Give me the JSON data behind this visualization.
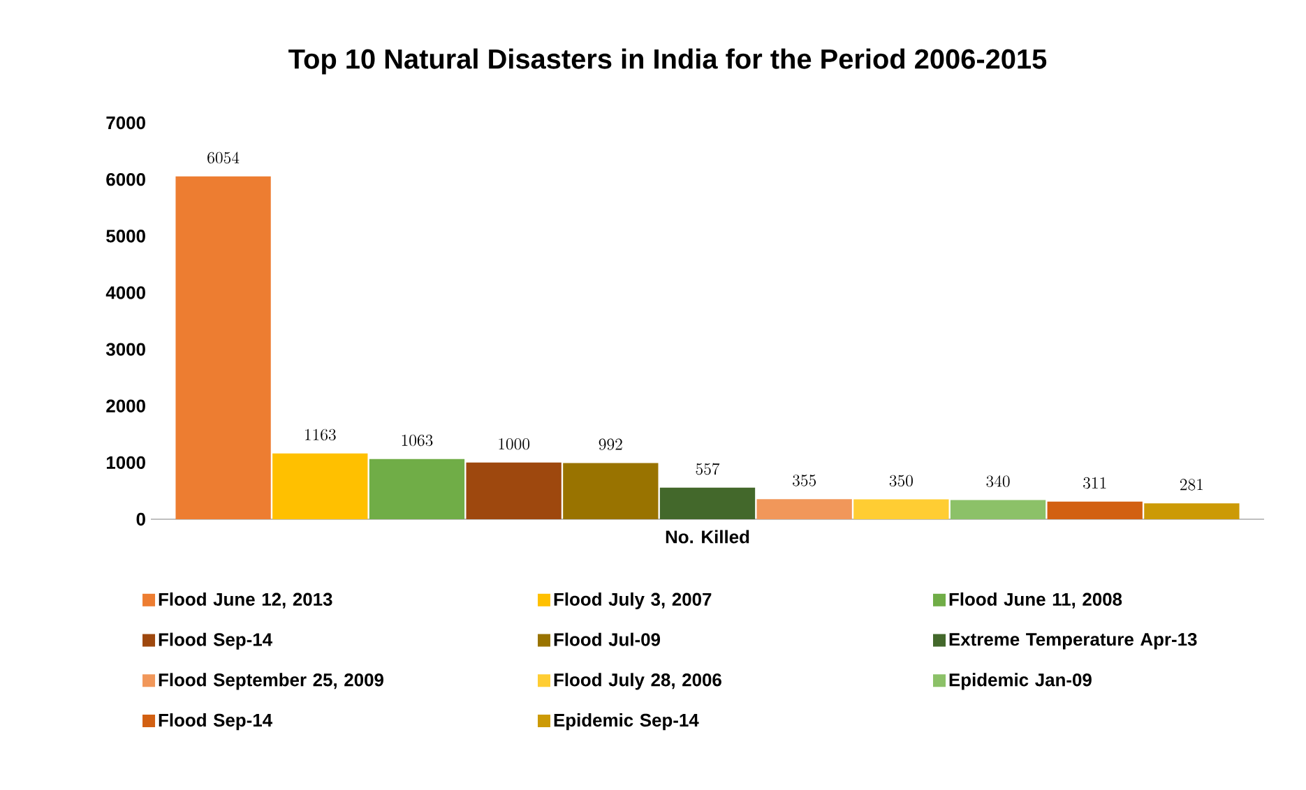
{
  "chart_data": {
    "type": "bar",
    "title": "Top 10 Natural Disasters in India for the Period 2006-2015",
    "categories": [
      "No. Killed"
    ],
    "series": [
      {
        "name": "Flood  June 12, 2013",
        "color": "#ed7d31",
        "values": [
          6054
        ]
      },
      {
        "name": "Flood  July 3, 2007",
        "color": "#ffc000",
        "values": [
          1163
        ]
      },
      {
        "name": "Flood  June 11, 2008",
        "color": "#70ad47",
        "values": [
          1063
        ]
      },
      {
        "name": "Flood  Sep-14",
        "color": "#9e480e",
        "values": [
          1000
        ]
      },
      {
        "name": "Flood  Jul-09",
        "color": "#997300",
        "values": [
          992
        ]
      },
      {
        "name": "Extreme Temperature  Apr-13",
        "color": "#43682b",
        "values": [
          557
        ]
      },
      {
        "name": "Flood  September 25, 2009",
        "color": "#f1975a",
        "values": [
          355
        ]
      },
      {
        "name": "Flood  July 28, 2006",
        "color": "#ffcd33",
        "values": [
          350
        ]
      },
      {
        "name": "Epidemic   Jan-09",
        "color": "#8cc168",
        "values": [
          340
        ]
      },
      {
        "name": "Flood   Sep-14",
        "color": "#d26012",
        "values": [
          311
        ]
      },
      {
        "name": "Epidemic   Sep-14",
        "color": "#cc9a06",
        "values": [
          281
        ]
      }
    ],
    "ylim": [
      0,
      7000
    ],
    "yticks": [
      0,
      1000,
      2000,
      3000,
      4000,
      5000,
      6000,
      7000
    ],
    "data_labels": true,
    "grid": false,
    "legend": "bottom"
  }
}
